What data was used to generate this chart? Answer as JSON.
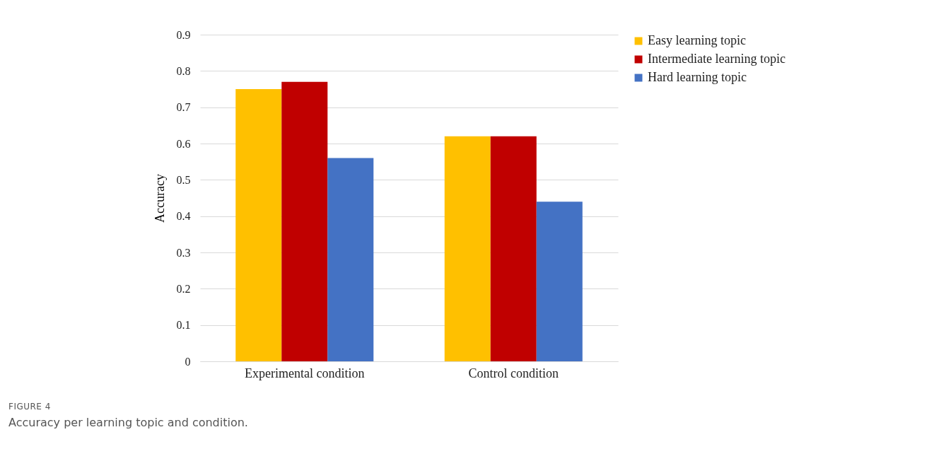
{
  "chart_data": {
    "type": "bar",
    "ylabel": "Accuracy",
    "categories": [
      "Experimental condition",
      "Control condition"
    ],
    "series": [
      {
        "name": "Easy learning topic",
        "color": "#ffc000",
        "values": [
          0.75,
          0.62
        ]
      },
      {
        "name": "Intermediate learning topic",
        "color": "#c00000",
        "values": [
          0.77,
          0.62
        ]
      },
      {
        "name": "Hard learning topic",
        "color": "#4472c4",
        "values": [
          0.56,
          0.44
        ]
      }
    ],
    "ylim": [
      0,
      0.9
    ],
    "yticks": [
      0,
      0.1,
      0.2,
      0.3,
      0.4,
      0.5,
      0.6,
      0.7,
      0.8,
      0.9
    ],
    "grid": "y",
    "legend": "right",
    "annotations": [
      "FIGURE 4",
      "Accuracy per learning topic and condition."
    ]
  }
}
